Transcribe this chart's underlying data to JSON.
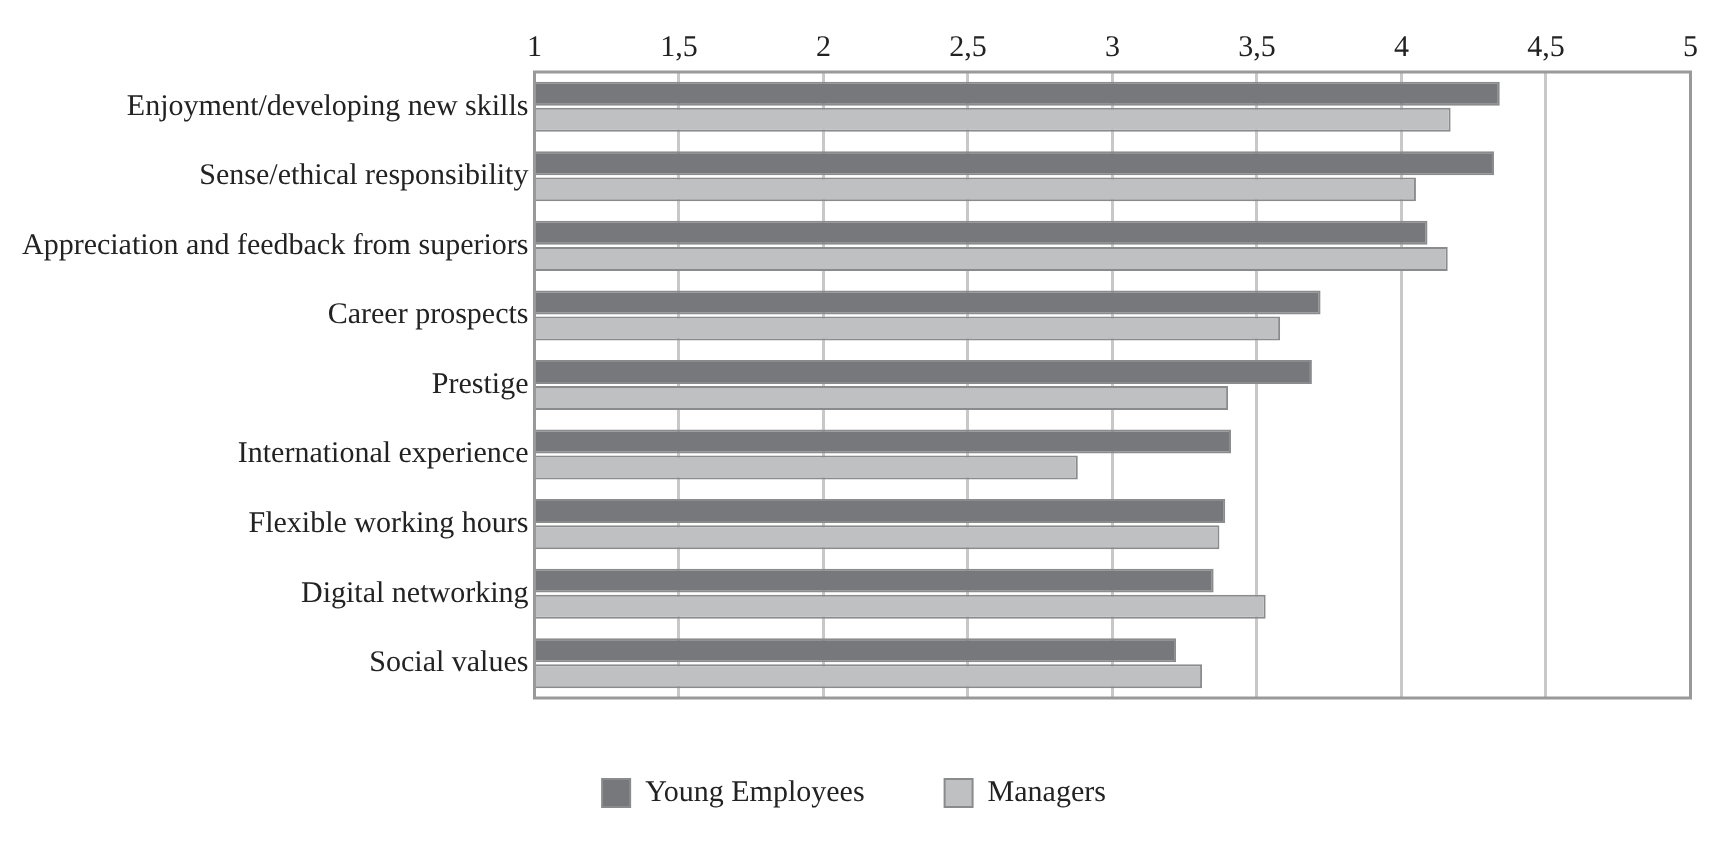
{
  "chart_data": {
    "type": "bar",
    "orientation": "horizontal",
    "categories": [
      "Enjoyment/developing new skills",
      "Sense/ethical responsibility",
      "Appreciation and feedback from superiors",
      "Career prospects",
      "Prestige",
      "International experience",
      "Flexible working hours",
      "Digital networking",
      "Social values"
    ],
    "series": [
      {
        "name": "Young Employees",
        "color": "#77787b",
        "values": [
          4.34,
          4.32,
          4.09,
          3.72,
          3.69,
          3.41,
          3.39,
          3.35,
          3.22
        ]
      },
      {
        "name": "Managers",
        "color": "#bfc0c2",
        "values": [
          4.17,
          4.05,
          4.16,
          3.58,
          3.4,
          2.88,
          3.37,
          3.53,
          3.31
        ]
      }
    ],
    "xlim": [
      1,
      5
    ],
    "xticks": [
      1,
      {
        "value": 1.5,
        "label": "1,5"
      },
      2,
      {
        "value": 2.5,
        "label": "2,5"
      },
      3,
      {
        "value": 3.5,
        "label": "3,5"
      },
      4,
      {
        "value": 4.5,
        "label": "4,5"
      },
      5
    ],
    "grid": "x",
    "legend": "bottom"
  }
}
